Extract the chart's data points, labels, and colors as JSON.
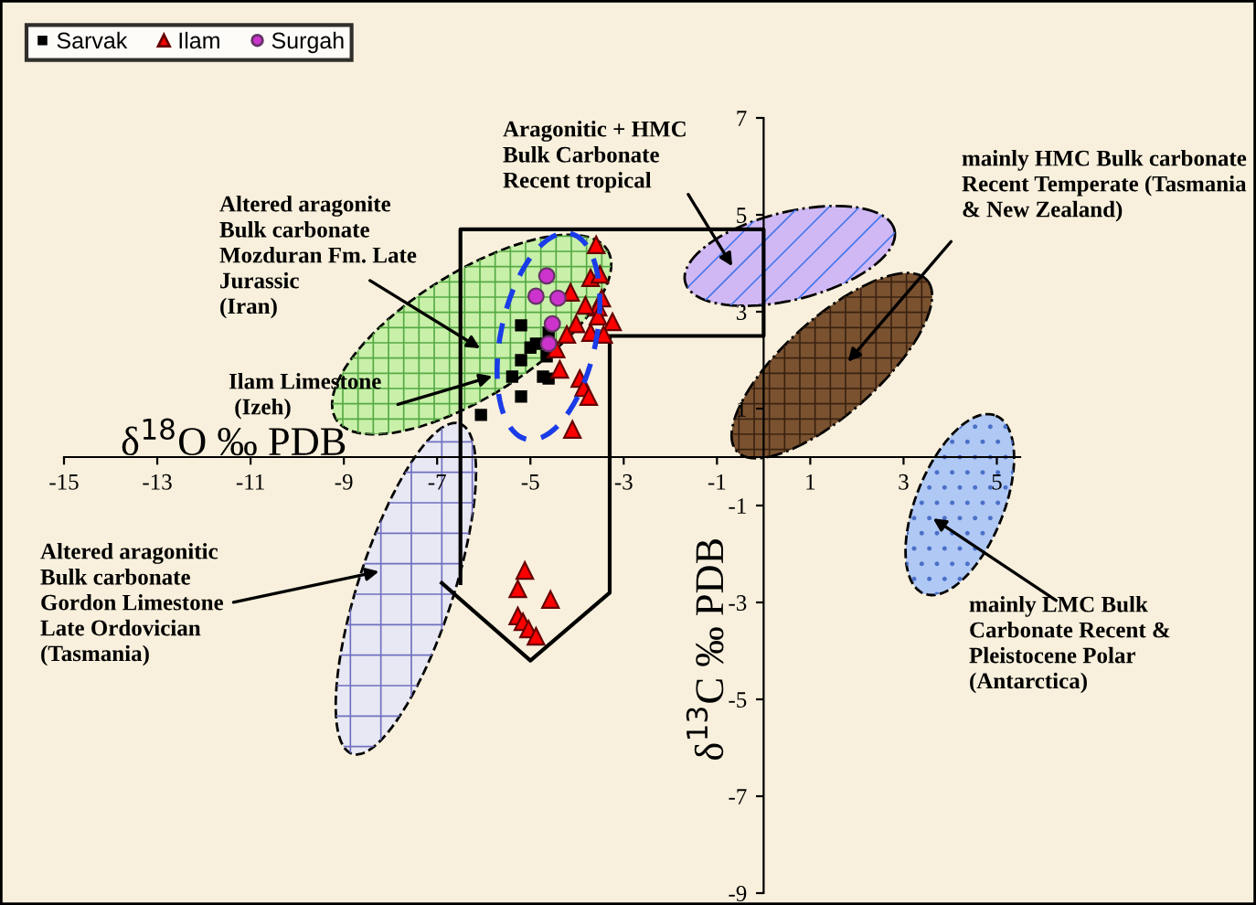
{
  "chart_data": {
    "type": "scatter",
    "xlabel": "δ$^{18}$O ‰ PDB",
    "ylabel": "δ$^{13}$C ‰ PDB",
    "xlim": [
      -15,
      5.5
    ],
    "ylim": [
      -9,
      7
    ],
    "xticks": [
      -15,
      -13,
      -11,
      -9,
      -7,
      -5,
      -3,
      -1,
      1,
      3,
      5
    ],
    "yticks": [
      -9,
      -7,
      -5,
      -3,
      -1,
      1,
      3,
      5,
      7
    ],
    "grid": false,
    "legend": "top left",
    "series": [
      {
        "name": "Sarvak",
        "color": "#000000",
        "marker": "square",
        "x": [
          -5.2,
          -5.0,
          -4.88,
          -4.65,
          -4.73,
          -4.61,
          -5.2,
          -6.06,
          -5.39,
          -5.2,
          -4.61
        ],
        "values": [
          2.72,
          2.26,
          2.34,
          2.08,
          1.66,
          1.62,
          1.25,
          0.87,
          1.66,
          2.0,
          2.57
        ]
      },
      {
        "name": "Ilam",
        "color": "#ff0000",
        "marker": "triangle",
        "x": [
          -3.59,
          -3.71,
          -3.51,
          -4.14,
          -3.47,
          -3.55,
          -3.82,
          -3.55,
          -3.24,
          -4.02,
          -4.22,
          -3.71,
          -3.43,
          -4.45,
          -4.37,
          -3.94,
          -3.86,
          -3.75,
          -4.1,
          -5.12,
          -5.27,
          -4.57,
          -5.27,
          -5.16,
          -5.04,
          -4.88
        ],
        "values": [
          4.38,
          3.7,
          3.77,
          3.4,
          3.28,
          3.09,
          3.13,
          2.91,
          2.79,
          2.75,
          2.53,
          2.57,
          2.53,
          2.23,
          1.81,
          1.62,
          1.43,
          1.25,
          0.57,
          -2.34,
          -2.72,
          -2.94,
          -3.28,
          -3.4,
          -3.55,
          -3.7
        ]
      },
      {
        "name": "Surgah",
        "color": "#cc33cc",
        "marker": "circle",
        "x": [
          -4.65,
          -4.88,
          -4.41,
          -4.53,
          -4.61
        ],
        "values": [
          3.74,
          3.32,
          3.28,
          2.75,
          2.34
        ]
      },
      {
        "type": "line",
        "color": "#000000",
        "marker": "none",
        "x": [
          -6.5,
          -6.5,
          0,
          0,
          -3.3,
          -3.3,
          -5,
          -6.9
        ],
        "values": [
          -2.6,
          4.7,
          4.7,
          2.5,
          2.5,
          -2.8,
          -4.2,
          -2.6
        ]
      }
    ],
    "annotations": [
      "Altered aragonite\nBulk carbonate\nMozduran Fm. Late\nJurassic\n(Iran)",
      "Ilam Limestone\n (Izeh)",
      "Aragonitic + HMC\nBulk Carbonate\nRecent tropical",
      "mainly HMC Bulk carbonate\nRecent Temperate (Tasmania\n& New Zealand)",
      "Altered aragonitic\nBulk carbonate\nGordon Limestone\nLate Ordovician\n(Tasmania)",
      "mainly LMC Bulk\nCarbonate Recent &\nPleistocene Polar\n(Antarctica)"
    ]
  }
}
